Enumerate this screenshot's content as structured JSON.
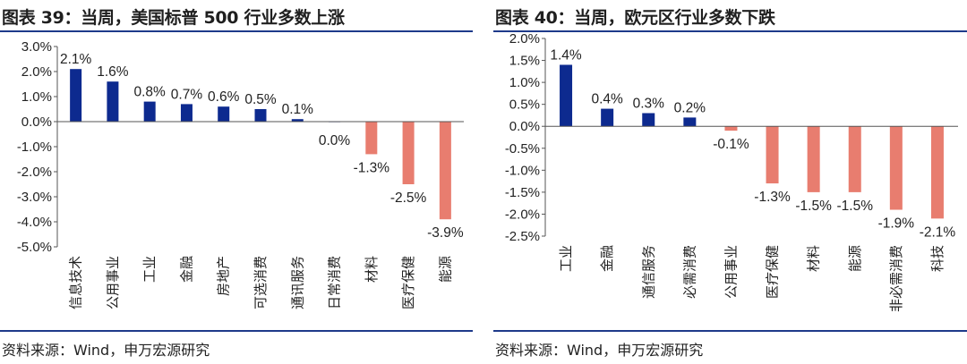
{
  "colors": {
    "positive": "#0d2a8f",
    "negative": "#e87d6f",
    "rule": "#1e3a8a"
  },
  "charts": {
    "left": {
      "title": "图表 39：当周，美国标普 500 行业多数上涨",
      "source": "资料来源：Wind，申万宏源研究"
    },
    "right": {
      "title": "图表 40：当周，欧元区行业多数下跌",
      "source": "资料来源：Wind，申万宏源研究"
    }
  },
  "chart_data": [
    {
      "type": "bar",
      "title": "图表 39：当周，美国标普 500 行业多数上涨",
      "categories": [
        "信息技术",
        "公用事业",
        "工业",
        "金融",
        "房地产",
        "可选消费",
        "通讯服务",
        "日常消费",
        "材料",
        "医疗保健",
        "能源"
      ],
      "values": [
        2.1,
        1.6,
        0.8,
        0.7,
        0.6,
        0.5,
        0.1,
        0.0,
        -1.3,
        -2.5,
        -3.9
      ],
      "value_labels": [
        "2.1%",
        "1.6%",
        "0.8%",
        "0.7%",
        "0.6%",
        "0.5%",
        "0.1%",
        "0.0%",
        "-1.3%",
        "-2.5%",
        "-3.9%"
      ],
      "ylim": [
        -5,
        3
      ],
      "yticks": [
        3,
        2,
        1,
        0,
        -1,
        -2,
        -3,
        -4,
        -5
      ],
      "ytick_labels": [
        "3.0%",
        "2.0%",
        "1.0%",
        "0.0%",
        "-1.0%",
        "-2.0%",
        "-3.0%",
        "-4.0%",
        "-5.0%"
      ],
      "grid": false,
      "legend": "none"
    },
    {
      "type": "bar",
      "title": "图表 40：当周，欧元区行业多数下跌",
      "categories": [
        "工业",
        "金融",
        "通信服务",
        "必需消费",
        "公用事业",
        "医疗保健",
        "材料",
        "能源",
        "非必需消费",
        "科技"
      ],
      "values": [
        1.4,
        0.4,
        0.3,
        0.2,
        -0.1,
        -1.3,
        -1.5,
        -1.5,
        -1.9,
        -2.1
      ],
      "value_labels": [
        "1.4%",
        "0.4%",
        "0.3%",
        "0.2%",
        "-0.1%",
        "-1.3%",
        "-1.5%",
        "-1.5%",
        "-1.9%",
        "-2.1%"
      ],
      "ylim": [
        -2.5,
        2
      ],
      "yticks": [
        2,
        1.5,
        1,
        0.5,
        0,
        -0.5,
        -1,
        -1.5,
        -2,
        -2.5
      ],
      "ytick_labels": [
        "2.0%",
        "1.5%",
        "1.0%",
        "0.5%",
        "0.0%",
        "-0.5%",
        "-1.0%",
        "-1.5%",
        "-2.0%",
        "-2.5%"
      ],
      "grid": false,
      "legend": "none"
    }
  ]
}
